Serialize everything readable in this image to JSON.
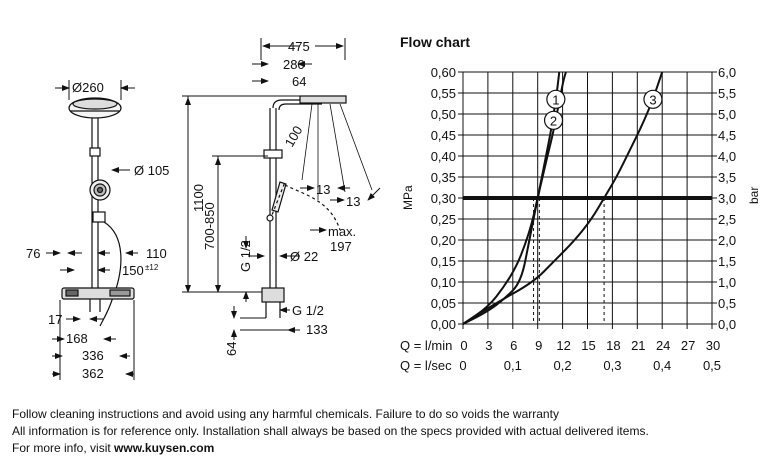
{
  "chart_data": {
    "type": "line",
    "title": "Flow chart",
    "ylabel_left": "MPa",
    "ylabel_right": "bar",
    "xlabel_primary": "Q = l/min",
    "xlabel_secondary": "Q = l/sec",
    "y_ticks_mpa": [
      "0,00",
      "0,05",
      "0,10",
      "0,15",
      "0,20",
      "0,25",
      "0,30",
      "0,35",
      "0,40",
      "0,45",
      "0,50",
      "0,55",
      "0,60"
    ],
    "y_ticks_bar": [
      "0,0",
      "0,5",
      "1,0",
      "1,5",
      "2,0",
      "2,5",
      "3,0",
      "3,5",
      "4,0",
      "4,5",
      "5,0",
      "5,5",
      "6,0"
    ],
    "x_ticks_lmin": [
      "0",
      "3",
      "6",
      "9",
      "12",
      "15",
      "18",
      "21",
      "24",
      "27",
      "30"
    ],
    "x_ticks_lsec": [
      "0",
      "0,1",
      "0,2",
      "0,3",
      "0,4",
      "0,5"
    ],
    "ylim": [
      0,
      0.6
    ],
    "xlim": [
      0,
      30
    ],
    "reference_line_mpa": 0.3,
    "series": [
      {
        "name": "1",
        "x": [
          0,
          3,
          5,
          6.5,
          7.5,
          8.3,
          9.0,
          9.6,
          10.1,
          10.6,
          11.0,
          11.3,
          11.6
        ],
        "y": [
          0,
          0.04,
          0.09,
          0.14,
          0.19,
          0.24,
          0.3,
          0.36,
          0.41,
          0.46,
          0.51,
          0.55,
          0.6
        ]
      },
      {
        "name": "2",
        "x": [
          0,
          3,
          5,
          7,
          8,
          9.0,
          9.7,
          10.3,
          10.8,
          11.3,
          11.7,
          12.1,
          12.4
        ],
        "y": [
          0,
          0.03,
          0.06,
          0.1,
          0.2,
          0.3,
          0.36,
          0.41,
          0.45,
          0.5,
          0.54,
          0.58,
          0.6
        ]
      },
      {
        "name": "3",
        "x": [
          0,
          4,
          8.5,
          11,
          13.5,
          15.5,
          17.0,
          18.5,
          20,
          21.5,
          22.8,
          24.0
        ],
        "y": [
          0,
          0.05,
          0.1,
          0.15,
          0.2,
          0.25,
          0.3,
          0.35,
          0.41,
          0.47,
          0.53,
          0.6
        ]
      }
    ],
    "drop_lines_lmin": [
      8.5,
      9.2,
      17.0
    ],
    "grid": true
  },
  "drawing": {
    "head_diameter": "Ø260",
    "dim_475": "475",
    "dim_280": "280",
    "dim_64_top": "64",
    "dim_100": "100",
    "dim_1100": "1100",
    "dim_700_850": "700-850",
    "dim_105": "Ø 105",
    "dim_13a": "13",
    "dim_13b": "13",
    "dim_max": "max.",
    "dim_197": "197",
    "dim_g12_left": "G 1/2",
    "dim_22": "Ø 22",
    "dim_76": "76",
    "dim_110": "110",
    "dim_150": "150",
    "dim_150_tol": "±12",
    "dim_17": "17",
    "dim_168": "168",
    "dim_336": "336",
    "dim_362": "362",
    "dim_g12_right": "G 1/2",
    "dim_133": "133",
    "dim_64_bottom": "64"
  },
  "notes": {
    "line1": "Follow cleaning instructions and avoid using any harmful chemicals. Failure to do so voids the warranty",
    "line2": "All information is for reference only. Installation shall always be based on the specs provided with actual delivered items.",
    "line3_prefix": "For more info, visit ",
    "line3_link": "www.kuysen.com"
  }
}
